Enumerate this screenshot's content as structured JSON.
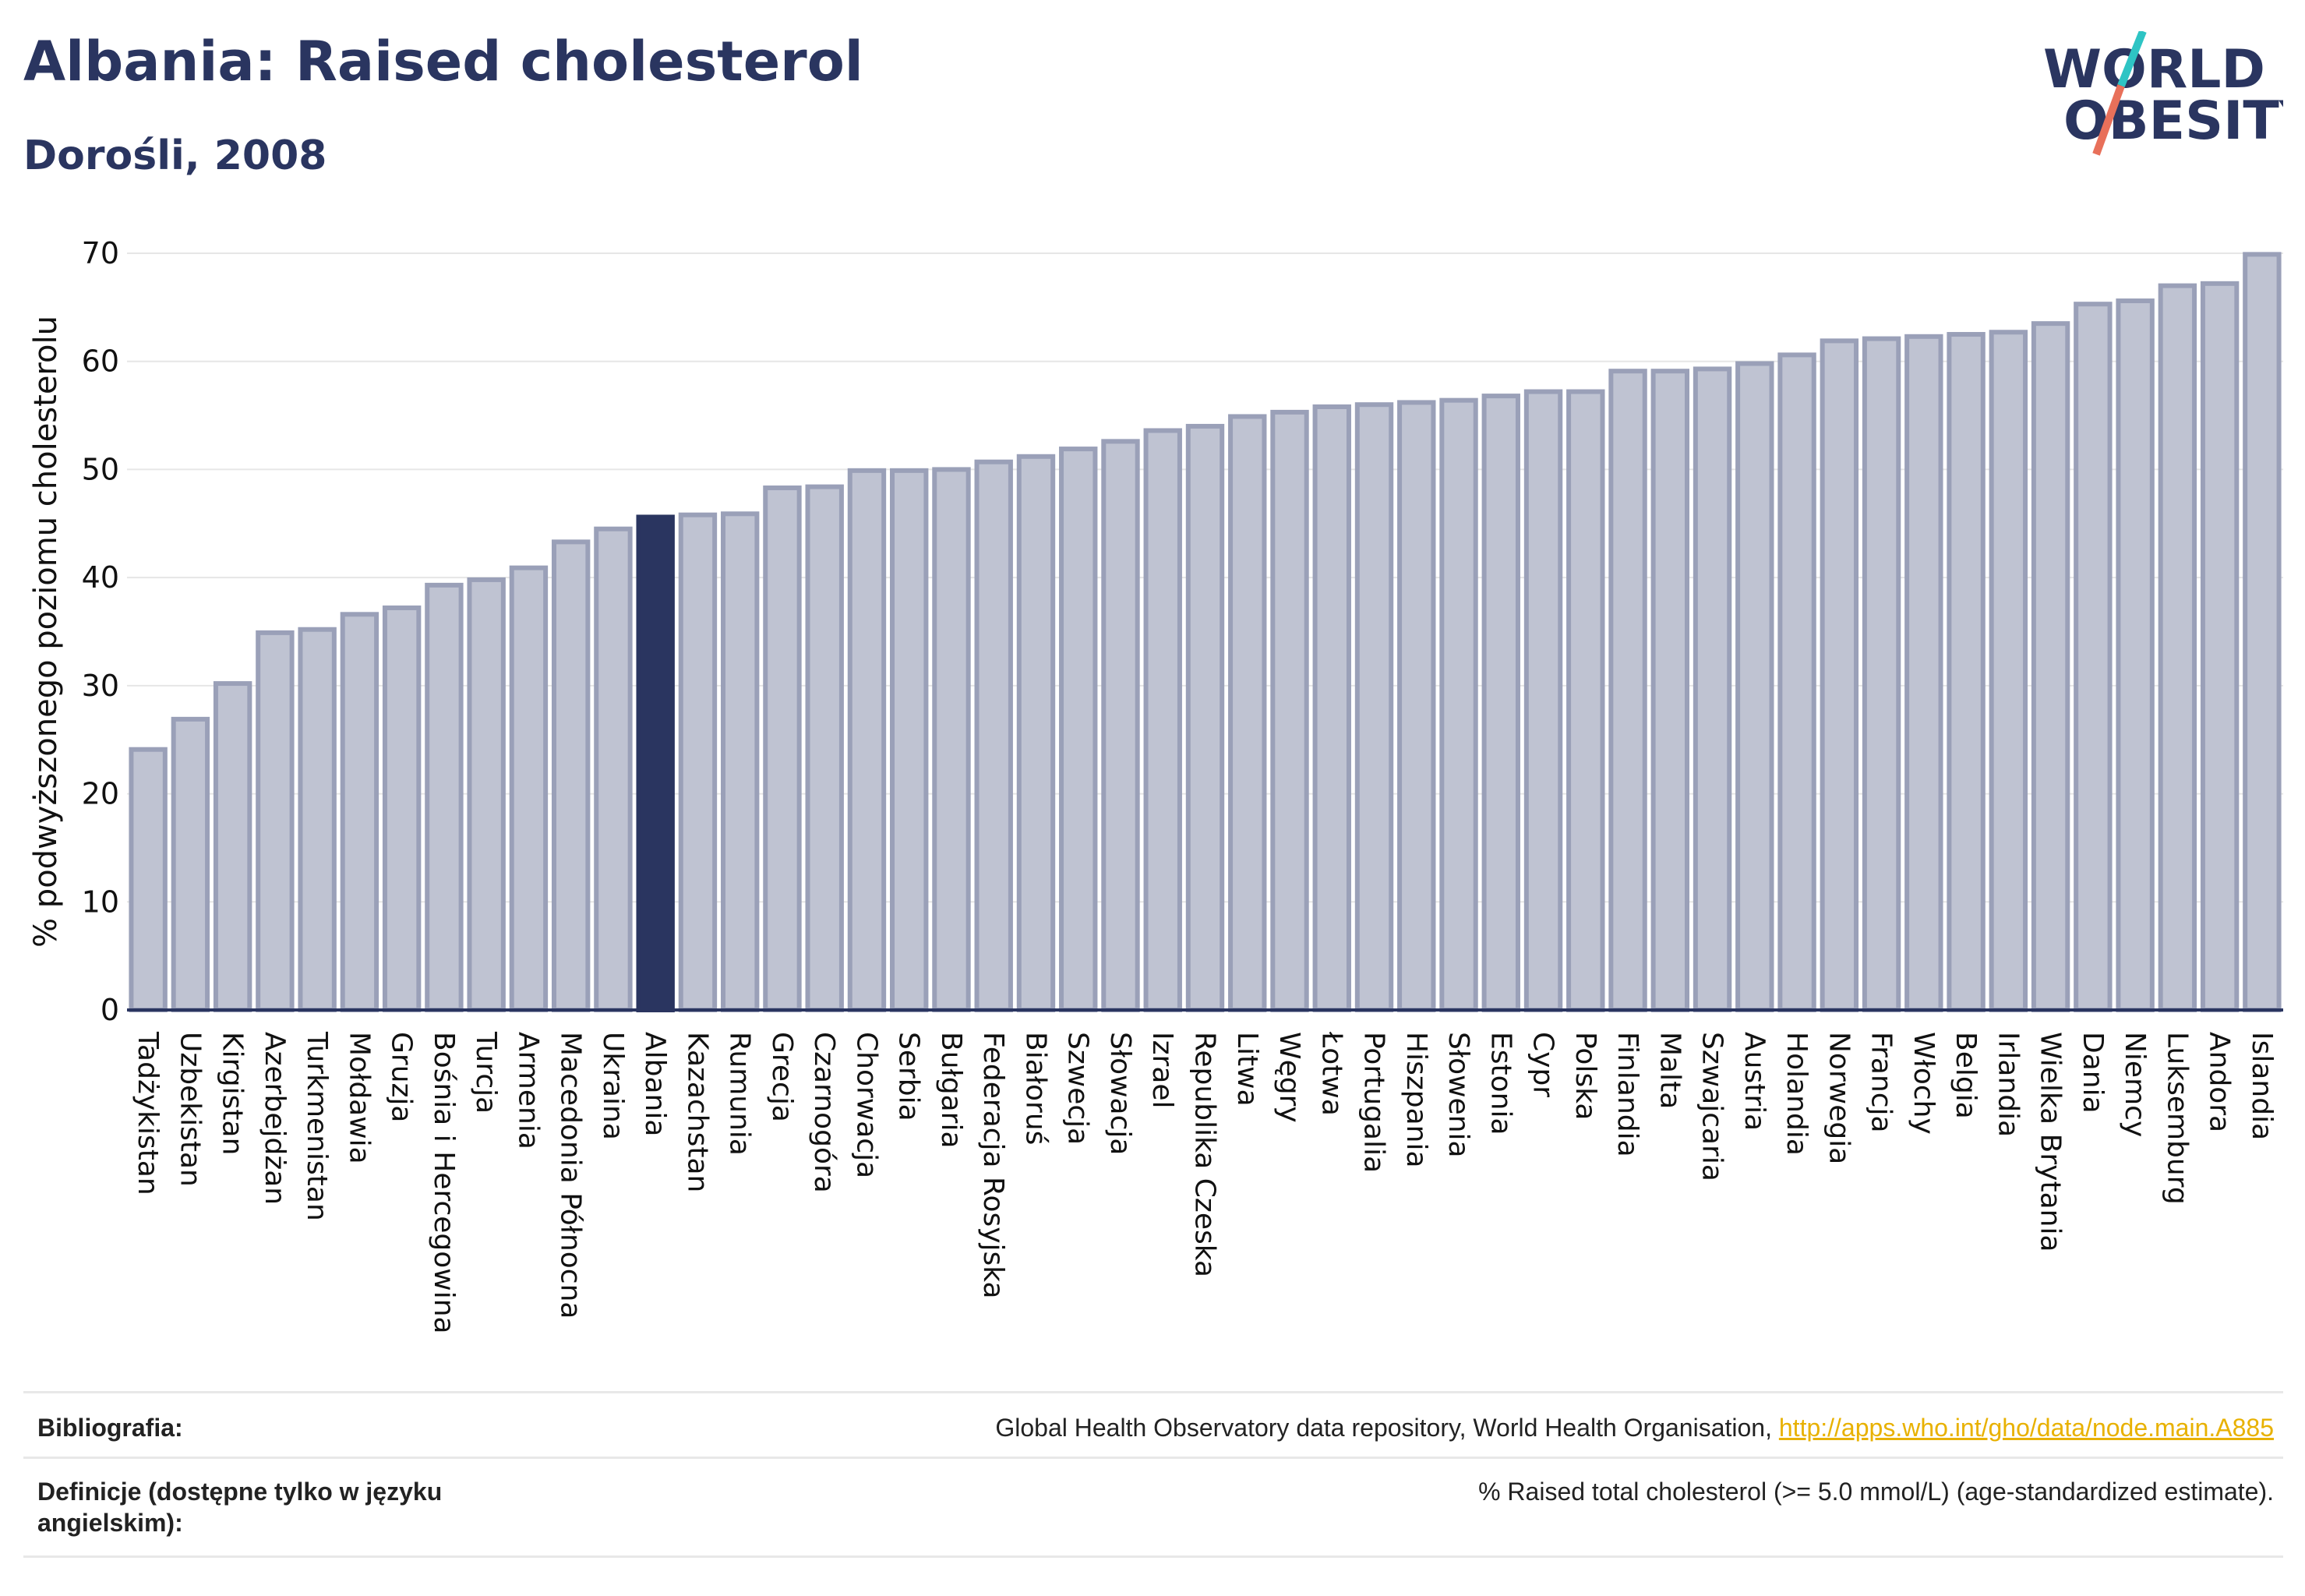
{
  "header": {
    "title": "Albania: Raised cholesterol",
    "subtitle": "Dorośli, 2008"
  },
  "logo": {
    "line1": "WORLD",
    "line2": "OBESITY",
    "colors": {
      "text": "#2a3560",
      "slash_top": "#2ec4c4",
      "slash_bottom": "#e8705a"
    }
  },
  "colors": {
    "bar": "#bfc3d2",
    "bar_border": "#9aa0b8",
    "highlight": "#2a3560",
    "axis": "#2a3560",
    "grid": "#e6e6e6"
  },
  "chart_data": {
    "type": "bar",
    "ylabel": "% podwyższonego poziomu cholesterolu",
    "ylim": [
      0,
      70
    ],
    "yticks": [
      0,
      10,
      20,
      30,
      40,
      50,
      60,
      70
    ],
    "highlight": "Albania",
    "categories": [
      "Tadżykistan",
      "Uzbekistan",
      "Kirgistan",
      "Azerbejdżan",
      "Turkmenistan",
      "Mołdawia",
      "Gruzja",
      "Bośnia i Hercegowina",
      "Turcja",
      "Armenia",
      "Macedonia Północna",
      "Ukraina",
      "Albania",
      "Kazachstan",
      "Rumunia",
      "Grecja",
      "Czarnogóra",
      "Chorwacja",
      "Serbia",
      "Bułgaria",
      "Federacja Rosyjska",
      "Białoruś",
      "Szwecja",
      "Słowacja",
      "Izrael",
      "Republika Czeska",
      "Litwa",
      "Węgry",
      "Łotwa",
      "Portugalia",
      "Hiszpania",
      "Słowenia",
      "Estonia",
      "Cypr",
      "Polska",
      "Finlandia",
      "Malta",
      "Szwajcaria",
      "Austria",
      "Holandia",
      "Norwegia",
      "Francja",
      "Włochy",
      "Belgia",
      "Irlandia",
      "Wielka Brytania",
      "Dania",
      "Niemcy",
      "Luksemburg",
      "Andora",
      "Islandia"
    ],
    "values": [
      24.1,
      26.9,
      30.2,
      34.9,
      35.2,
      36.6,
      37.2,
      39.3,
      39.8,
      40.9,
      43.3,
      44.5,
      45.6,
      45.8,
      45.9,
      48.3,
      48.4,
      49.9,
      49.9,
      50.0,
      50.7,
      51.2,
      51.9,
      52.6,
      53.6,
      54.0,
      54.9,
      55.3,
      55.8,
      56.0,
      56.2,
      56.4,
      56.8,
      57.2,
      57.2,
      59.1,
      59.1,
      59.3,
      59.8,
      60.6,
      61.9,
      62.1,
      62.3,
      62.5,
      62.7,
      63.5,
      65.3,
      65.6,
      67.0,
      67.2,
      69.9
    ]
  },
  "footer": {
    "bibliography_label": "Bibliografia:",
    "bibliography_text": "Global Health Observatory data repository, World Health Organisation, ",
    "bibliography_link": "http://apps.who.int/gho/data/node.main.A885",
    "definitions_label": "Definicje (dostępne tylko w języku angielskim):",
    "definitions_text": "% Raised total cholesterol (>= 5.0 mmol/L) (age-standardized estimate)."
  }
}
